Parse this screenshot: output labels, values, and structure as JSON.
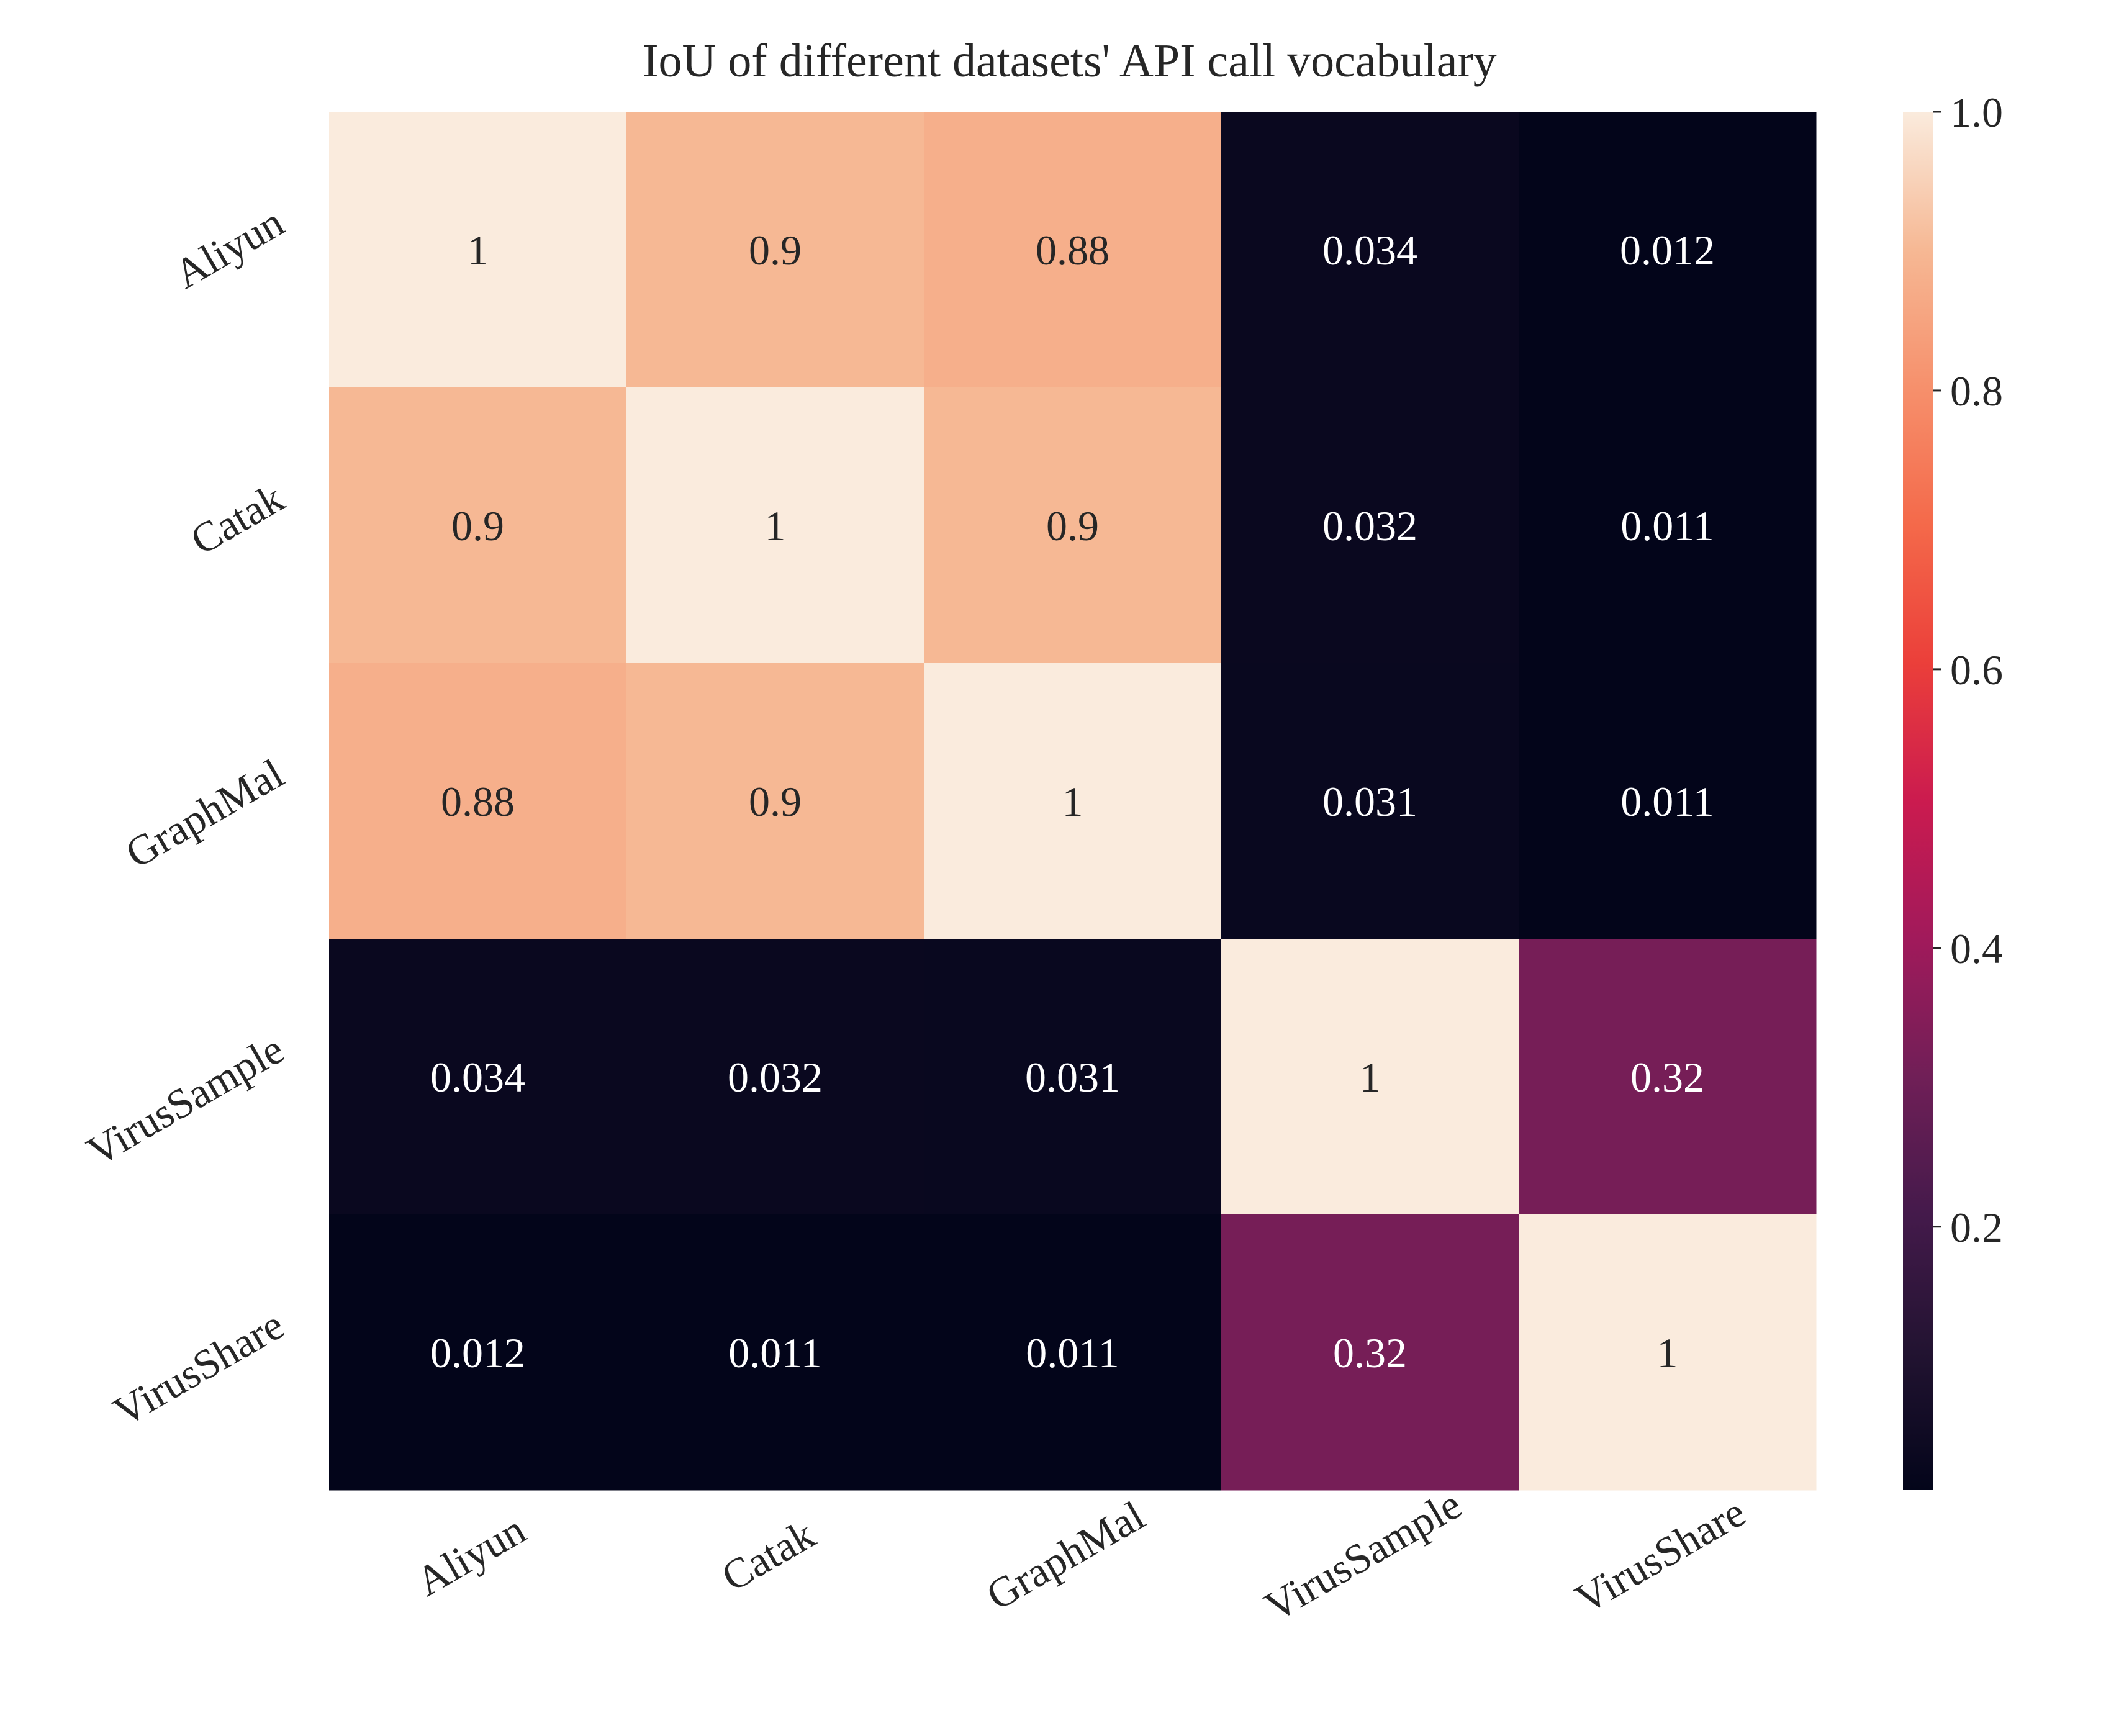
{
  "chart_data": {
    "type": "heatmap",
    "title": "IoU of different datasets' API call vocabulary",
    "xlabel": "",
    "ylabel": "",
    "x_categories": [
      "Aliyun",
      "Catak",
      "GraphMal",
      "VirusSample",
      "VirusShare"
    ],
    "y_categories": [
      "Aliyun",
      "Catak",
      "GraphMal",
      "VirusSample",
      "VirusShare"
    ],
    "values": [
      [
        1,
        0.9,
        0.88,
        0.034,
        0.012
      ],
      [
        0.9,
        1,
        0.9,
        0.032,
        0.011
      ],
      [
        0.88,
        0.9,
        1,
        0.031,
        0.011
      ],
      [
        0.034,
        0.032,
        0.031,
        1,
        0.32
      ],
      [
        0.012,
        0.011,
        0.011,
        0.32,
        1
      ]
    ],
    "value_labels": [
      [
        "1",
        "0.9",
        "0.88",
        "0.034",
        "0.012"
      ],
      [
        "0.9",
        "1",
        "0.9",
        "0.032",
        "0.011"
      ],
      [
        "0.88",
        "0.9",
        "1",
        "0.031",
        "0.011"
      ],
      [
        "0.034",
        "0.032",
        "0.031",
        "1",
        "0.32"
      ],
      [
        "0.012",
        "0.011",
        "0.011",
        "0.32",
        "1"
      ]
    ],
    "colormap": "rocket",
    "vmin": 0.011,
    "vmax": 1,
    "colorbar": {
      "ticks": [
        0.2,
        0.4,
        0.6,
        0.8,
        1.0
      ],
      "tick_labels": [
        "0.2",
        "0.4",
        "0.6",
        "0.8",
        "1.0"
      ],
      "placement": "right"
    },
    "grid": false,
    "x_tick_rotation_deg": -30,
    "y_tick_rotation_deg": -30
  }
}
